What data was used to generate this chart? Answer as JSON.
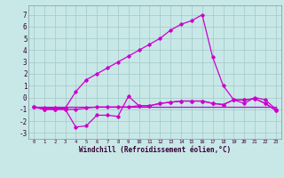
{
  "xlabel": "Windchill (Refroidissement éolien,°C)",
  "background_color": "#c8e8e8",
  "grid_color": "#aacccc",
  "line_color": "#cc00cc",
  "xlim": [
    -0.5,
    23.5
  ],
  "ylim": [
    -3.5,
    7.8
  ],
  "xtick_labels": [
    "0",
    "1",
    "2",
    "3",
    "4",
    "5",
    "6",
    "7",
    "8",
    "9",
    "10",
    "11",
    "12",
    "13",
    "14",
    "15",
    "16",
    "17",
    "18",
    "19",
    "20",
    "21",
    "22",
    "23"
  ],
  "xtick_vals": [
    0,
    1,
    2,
    3,
    4,
    5,
    6,
    7,
    8,
    9,
    10,
    11,
    12,
    13,
    14,
    15,
    16,
    17,
    18,
    19,
    20,
    21,
    22,
    23
  ],
  "yticks": [
    -3,
    -2,
    -1,
    0,
    1,
    2,
    3,
    4,
    5,
    6,
    7
  ],
  "series_nomarker": [
    {
      "x": [
        0,
        23
      ],
      "y": [
        -0.8,
        -0.8
      ]
    }
  ],
  "series_marker": [
    {
      "x": [
        0,
        1,
        2,
        3,
        4,
        5,
        6,
        7,
        8,
        9,
        10,
        11,
        12,
        13,
        14,
        15,
        16,
        17,
        18,
        19,
        20,
        21,
        22,
        23
      ],
      "y": [
        -0.8,
        -1.0,
        -1.0,
        -1.0,
        -2.5,
        -2.4,
        -1.5,
        -1.5,
        -1.6,
        0.1,
        -0.7,
        -0.7,
        -0.5,
        -0.4,
        -0.3,
        -0.3,
        -0.3,
        -0.5,
        -0.6,
        -0.2,
        -0.2,
        -0.1,
        -0.5,
        -1.1
      ]
    },
    {
      "x": [
        0,
        1,
        2,
        3,
        4,
        5,
        6,
        7,
        8,
        9,
        10,
        11,
        12,
        13,
        14,
        15,
        16,
        17,
        18,
        19,
        20,
        21,
        22,
        23
      ],
      "y": [
        -0.8,
        -1.0,
        -1.0,
        -1.0,
        -1.0,
        -0.9,
        -0.8,
        -0.8,
        -0.8,
        -0.8,
        -0.7,
        -0.7,
        -0.5,
        -0.4,
        -0.3,
        -0.3,
        -0.3,
        -0.5,
        -0.6,
        -0.2,
        -0.2,
        -0.1,
        -0.5,
        -1.1
      ]
    },
    {
      "x": [
        0,
        1,
        2,
        3,
        4,
        5,
        6,
        7,
        8,
        9,
        10,
        11,
        12,
        13,
        14,
        15,
        16,
        17,
        18,
        19,
        20,
        21,
        22,
        23
      ],
      "y": [
        -0.8,
        -0.9,
        -0.9,
        -0.9,
        0.5,
        1.5,
        2.0,
        2.5,
        3.0,
        3.5,
        4.0,
        4.5,
        5.0,
        5.7,
        6.2,
        6.5,
        7.0,
        3.4,
        1.0,
        -0.2,
        -0.5,
        0.0,
        -0.2,
        -1.0
      ]
    }
  ]
}
